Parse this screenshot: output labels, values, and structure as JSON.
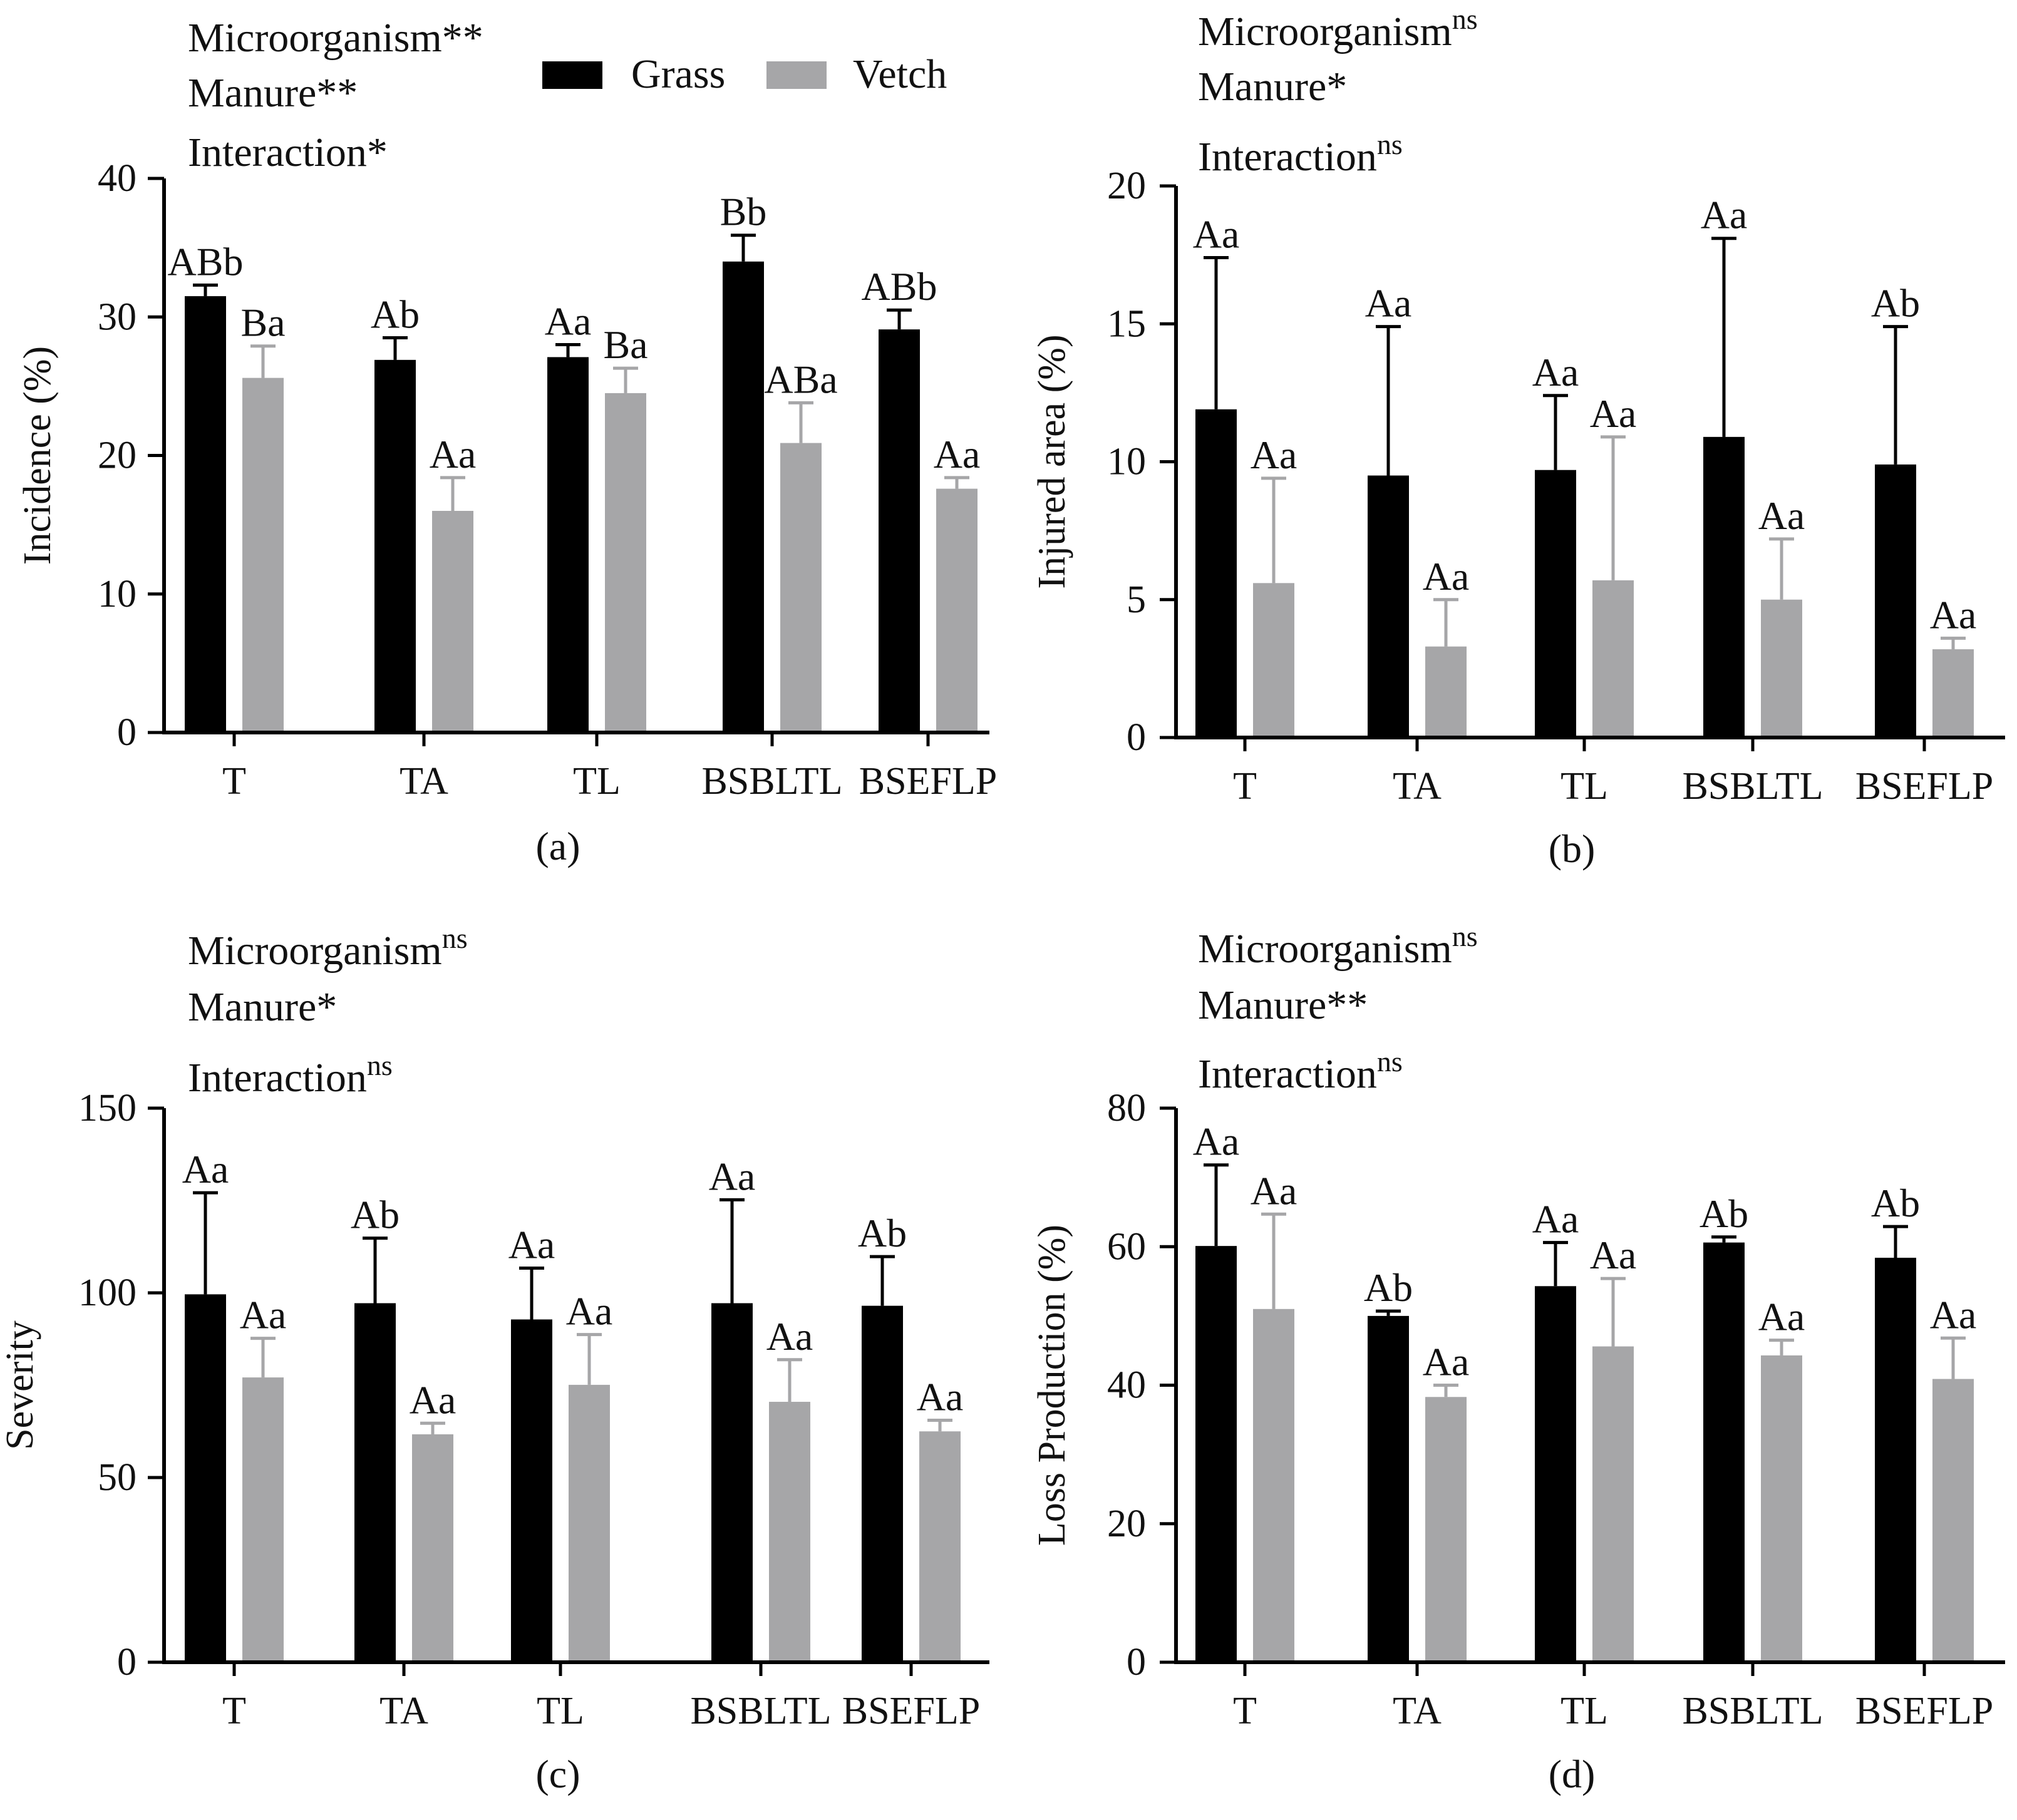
{
  "colors": {
    "grass": "#000000",
    "vetch": "#a6a6a8",
    "axis": "#000000"
  },
  "legend": {
    "items": [
      {
        "name": "Grass",
        "color": "#000000"
      },
      {
        "name": "Vetch",
        "color": "#a6a6a8"
      }
    ]
  },
  "chart_data": [
    {
      "type": "bar",
      "panel": "(a)",
      "categories": [
        "T",
        "TA",
        "TL",
        "BSBLTL",
        "BSEFLP"
      ],
      "ylabel": "Incidence (%)",
      "ylim": [
        0,
        40
      ],
      "yticks": [
        0,
        10,
        20,
        30,
        40
      ],
      "stats": [
        {
          "label": "Microorganism",
          "sig": "**",
          "sup": false
        },
        {
          "label": "Manure",
          "sig": "**",
          "sup": false
        },
        {
          "label": "Interaction",
          "sig": "*",
          "sup": false
        }
      ],
      "series": [
        {
          "name": "Grass",
          "values": [
            31.5,
            26.9,
            27.1,
            34.0,
            29.1
          ],
          "errors": [
            0.8,
            1.6,
            0.9,
            1.9,
            1.4
          ],
          "letters": [
            "ABb",
            "Ab",
            "Aa",
            "Bb",
            "ABb"
          ]
        },
        {
          "name": "Vetch",
          "values": [
            25.6,
            16.0,
            24.5,
            20.9,
            17.6
          ],
          "errors": [
            2.3,
            2.4,
            1.8,
            2.9,
            0.8
          ],
          "letters": [
            "Ba",
            "Aa",
            "Ba",
            "ABa",
            "Aa"
          ]
        }
      ]
    },
    {
      "type": "bar",
      "panel": "(b)",
      "categories": [
        "T",
        "TA",
        "TL",
        "BSBLTL",
        "BSEFLP"
      ],
      "ylabel": "Injured area (%)",
      "ylim": [
        0,
        20
      ],
      "yticks": [
        0,
        5,
        10,
        15,
        20
      ],
      "stats": [
        {
          "label": "Microorganism",
          "sig": "ns",
          "sup": true
        },
        {
          "label": "Manure",
          "sig": "*",
          "sup": false
        },
        {
          "label": "Interaction",
          "sig": "ns",
          "sup": true
        }
      ],
      "series": [
        {
          "name": "Grass",
          "values": [
            11.9,
            9.5,
            9.7,
            10.9,
            9.9
          ],
          "errors": [
            5.5,
            5.4,
            2.7,
            7.2,
            5.0
          ],
          "letters": [
            "Aa",
            "Aa",
            "Aa",
            "Aa",
            "Ab"
          ]
        },
        {
          "name": "Vetch",
          "values": [
            5.6,
            3.3,
            5.7,
            5.0,
            3.2
          ],
          "errors": [
            3.8,
            1.7,
            5.2,
            2.2,
            0.4
          ],
          "letters": [
            "Aa",
            "Aa",
            "Aa",
            "Aa",
            "Aa"
          ]
        }
      ]
    },
    {
      "type": "bar",
      "panel": "(c)",
      "categories": [
        "T",
        "TA",
        "TL",
        "BSBLTL",
        "BSEFLP"
      ],
      "ylabel": "Severity",
      "ylim": [
        0,
        150
      ],
      "yticks": [
        0,
        50,
        100,
        150
      ],
      "stats": [
        {
          "label": "Microorganism",
          "sig": "ns",
          "sup": true
        },
        {
          "label": "Manure",
          "sig": "*",
          "sup": false
        },
        {
          "label": "Interaction",
          "sig": "ns",
          "sup": true
        }
      ],
      "series": [
        {
          "name": "Grass",
          "values": [
            99.6,
            97.2,
            92.8,
            97.2,
            96.5
          ],
          "errors": [
            27.5,
            17.6,
            13.9,
            28.0,
            13.3
          ],
          "letters": [
            "Aa",
            "Ab",
            "Aa",
            "Aa",
            "Ab"
          ]
        },
        {
          "name": "Vetch",
          "values": [
            77.1,
            61.7,
            75.1,
            70.5,
            62.5
          ],
          "errors": [
            10.6,
            3.0,
            13.6,
            11.4,
            3.0
          ],
          "letters": [
            "Aa",
            "Aa",
            "Aa",
            "Aa",
            "Aa"
          ]
        }
      ]
    },
    {
      "type": "bar",
      "panel": "(d)",
      "categories": [
        "T",
        "TA",
        "TL",
        "BSBLTL",
        "BSEFLP"
      ],
      "ylabel": "Loss Production (%)",
      "ylim": [
        0,
        80
      ],
      "yticks": [
        0,
        20,
        40,
        60,
        80
      ],
      "stats": [
        {
          "label": "Microorganism",
          "sig": "ns",
          "sup": true
        },
        {
          "label": "Manure",
          "sig": "**",
          "sup": false
        },
        {
          "label": "Interaction",
          "sig": "ns",
          "sup": true
        }
      ],
      "series": [
        {
          "name": "Grass",
          "values": [
            60.1,
            50.0,
            54.3,
            60.6,
            58.4
          ],
          "errors": [
            11.7,
            0.7,
            6.3,
            0.8,
            4.5
          ],
          "letters": [
            "Aa",
            "Ab",
            "Aa",
            "Ab",
            "Ab"
          ]
        },
        {
          "name": "Vetch",
          "values": [
            51.0,
            38.3,
            45.6,
            44.3,
            40.9
          ],
          "errors": [
            13.7,
            1.7,
            9.8,
            2.2,
            5.9
          ],
          "letters": [
            "Aa",
            "Aa",
            "Aa",
            "Aa",
            "Aa"
          ]
        }
      ]
    }
  ]
}
